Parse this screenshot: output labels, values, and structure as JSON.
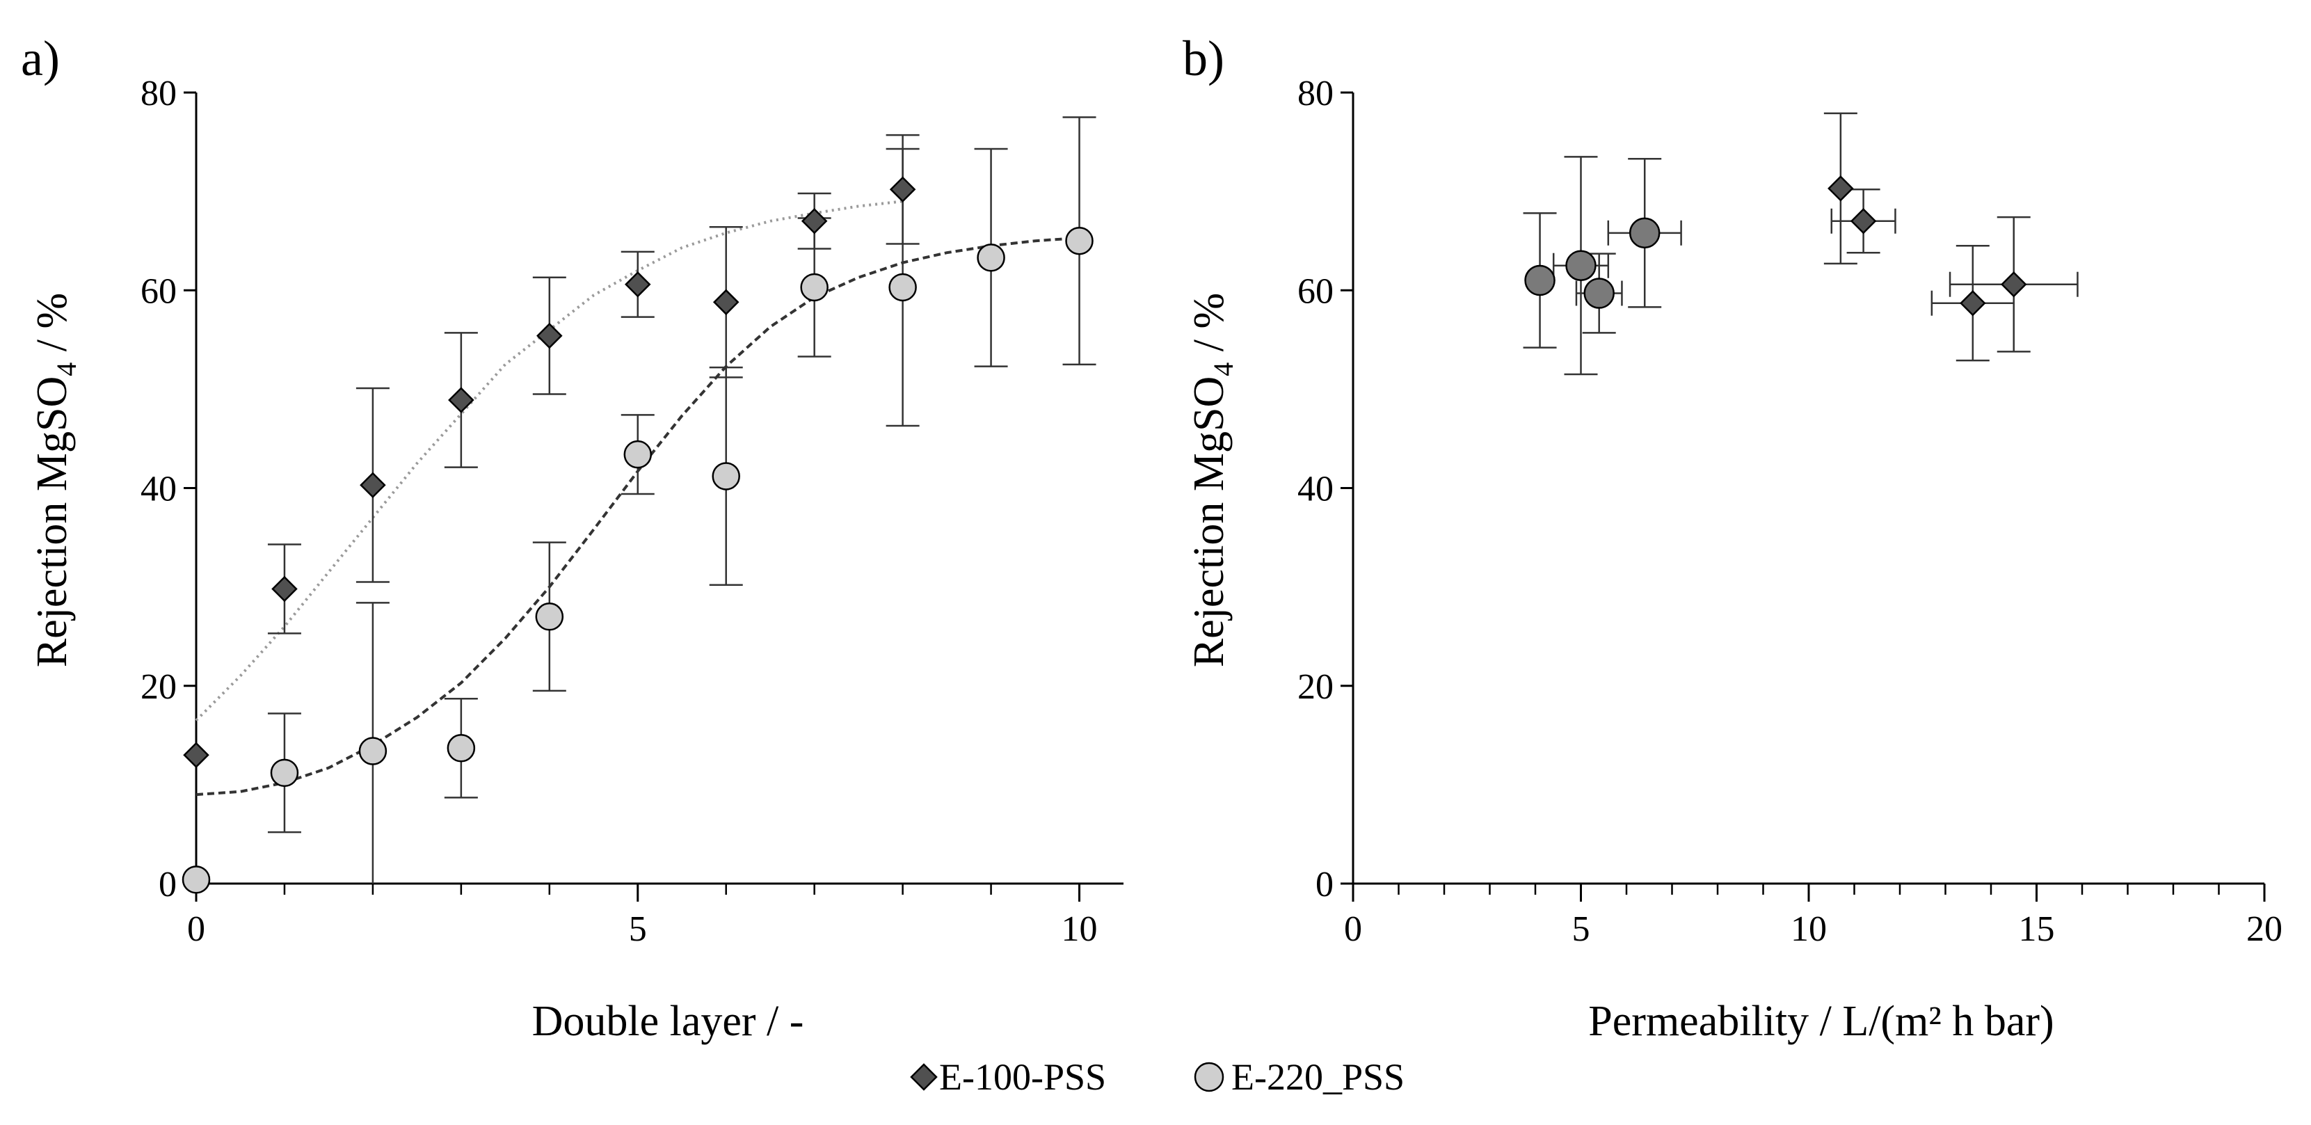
{
  "chart_data": [
    {
      "panel": "a)",
      "type": "scatter",
      "xlabel": "Double layer / -",
      "ylabel_main": "Rejection MgSO",
      "ylabel_sub": "4",
      "ylabel_tail": " / %",
      "xlim": [
        0,
        10.5
      ],
      "ylim": [
        0,
        80
      ],
      "xticks": [
        0,
        5,
        10
      ],
      "yticks": [
        0,
        20,
        40,
        60,
        80
      ],
      "xtick_labels": [
        "0",
        "5",
        "10"
      ],
      "ytick_labels": [
        "0",
        "20",
        "40",
        "60",
        "80"
      ],
      "series": [
        {
          "name": "E-100-PSS",
          "marker": "diamond",
          "color": "#505050",
          "points": [
            {
              "x": 0,
              "y": 13.0,
              "err": 0
            },
            {
              "x": 1,
              "y": 29.8,
              "err": 4.5
            },
            {
              "x": 2,
              "y": 40.3,
              "err": 9.8
            },
            {
              "x": 3,
              "y": 48.9,
              "err": 6.8
            },
            {
              "x": 4,
              "y": 55.4,
              "err": 5.9
            },
            {
              "x": 5,
              "y": 60.6,
              "err": 3.3
            },
            {
              "x": 6,
              "y": 58.8,
              "err": 7.6
            },
            {
              "x": 7,
              "y": 67.0,
              "err": 2.8
            },
            {
              "x": 8,
              "y": 70.2,
              "err": 5.5
            }
          ],
          "fit": {
            "style": "dotted",
            "color": "#9a9a9a",
            "x": [
              0,
              0.5,
              1,
              1.5,
              2,
              2.5,
              3,
              3.5,
              4,
              4.5,
              5,
              5.5,
              6,
              6.5,
              7,
              7.5,
              8
            ],
            "y": [
              16.5,
              21.0,
              26.0,
              31.5,
              37.0,
              42.5,
              47.5,
              52.5,
              56.0,
              59.5,
              62.0,
              64.3,
              65.8,
              67.0,
              67.8,
              68.5,
              69.0
            ]
          }
        },
        {
          "name": "E-220_PSS",
          "marker": "circle",
          "color": "#cfcfcf",
          "points": [
            {
              "x": 0,
              "y": 0.4,
              "err": 0
            },
            {
              "x": 1,
              "y": 11.2,
              "err": 6.0
            },
            {
              "x": 2,
              "y": 13.4,
              "err": 15.0
            },
            {
              "x": 3,
              "y": 13.7,
              "err": 5.0
            },
            {
              "x": 4,
              "y": 27.0,
              "err": 7.5
            },
            {
              "x": 5,
              "y": 43.4,
              "err": 4.0
            },
            {
              "x": 6,
              "y": 41.2,
              "err": 11.0
            },
            {
              "x": 7,
              "y": 60.3,
              "err": 7.0
            },
            {
              "x": 8,
              "y": 60.3,
              "err": 14.0
            },
            {
              "x": 9,
              "y": 63.3,
              "err": 11.0
            },
            {
              "x": 10,
              "y": 65.0,
              "err": 12.5
            }
          ],
          "fit": {
            "style": "dashed",
            "color": "#333333",
            "x": [
              0,
              0.5,
              1,
              1.5,
              2,
              2.5,
              3,
              3.5,
              4,
              4.5,
              5,
              5.5,
              6,
              6.5,
              7,
              7.5,
              8,
              8.5,
              9,
              9.5,
              10
            ],
            "y": [
              9.0,
              9.3,
              10.2,
              11.7,
              14.0,
              16.8,
              20.3,
              24.8,
              30.0,
              35.8,
              41.7,
              47.3,
              52.3,
              56.3,
              59.3,
              61.3,
              62.8,
              63.8,
              64.5,
              65.0,
              65.3
            ]
          }
        }
      ]
    },
    {
      "panel": "b)",
      "type": "scatter",
      "xlabel": "Permeability / L/(m² h bar)",
      "ylabel_main": "Rejection MgSO",
      "ylabel_sub": "4",
      "ylabel_tail": " / %",
      "xlim": [
        0,
        20
      ],
      "ylim": [
        0,
        80
      ],
      "xticks": [
        0,
        5,
        10,
        15,
        20
      ],
      "yticks": [
        0,
        20,
        40,
        60,
        80
      ],
      "xtick_labels": [
        "0",
        "5",
        "10",
        "15",
        "20"
      ],
      "ytick_labels": [
        "0",
        "20",
        "40",
        "60",
        "80"
      ],
      "series": [
        {
          "name": "E-220_PSS",
          "marker": "circle",
          "color": "#7a7a7a",
          "points": [
            {
              "x": 4.1,
              "y": 61.0,
              "yerr": 6.8,
              "xerr": 0
            },
            {
              "x": 5.0,
              "y": 62.5,
              "yerr": 11.0,
              "xerr": 0.6
            },
            {
              "x": 5.4,
              "y": 59.7,
              "yerr": 4.0,
              "xerr": 0.5
            },
            {
              "x": 6.4,
              "y": 65.8,
              "yerr": 7.5,
              "xerr": 0.8
            }
          ]
        },
        {
          "name": "E-100-PSS",
          "marker": "diamond",
          "color": "#505050",
          "points": [
            {
              "x": 10.7,
              "y": 70.3,
              "yerr": 7.6,
              "xerr": 0
            },
            {
              "x": 11.2,
              "y": 67.0,
              "yerr": 3.2,
              "xerr": 0.7
            },
            {
              "x": 13.6,
              "y": 58.7,
              "yerr": 5.8,
              "xerr": 0.9
            },
            {
              "x": 14.5,
              "y": 60.6,
              "yerr": 6.8,
              "xerr": 1.4
            }
          ]
        }
      ]
    }
  ],
  "legend": {
    "items": [
      {
        "label": "E-100-PSS",
        "marker": "diamond",
        "color": "#505050"
      },
      {
        "label": "E-220_PSS",
        "marker": "circle",
        "color": "#cfcfcf"
      }
    ]
  }
}
